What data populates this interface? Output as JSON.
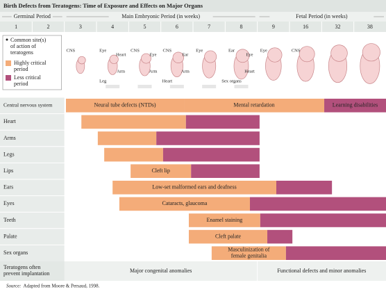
{
  "header": {
    "title": "Birth Defects from Teratogens: Time of Exposure and Effects on Major Organs"
  },
  "periods": [
    {
      "label": "Germinal Period",
      "span": 2
    },
    {
      "label": "Main Embryonic Period (in weeks)",
      "span": 6
    },
    {
      "label": "Fetal Period (in weeks)",
      "span": 4
    }
  ],
  "weeks": [
    1,
    2,
    3,
    4,
    5,
    6,
    7,
    8,
    9,
    16,
    32,
    38
  ],
  "legend": {
    "site_note": [
      "Common site(s)",
      "of action of",
      "teratogens"
    ],
    "highly": [
      "Highly critical",
      "period"
    ],
    "less": [
      "Less critical",
      "period"
    ],
    "highly_color": "#f4ac79",
    "less_color": "#b2507c"
  },
  "embryo_labels": [
    [],
    [],
    [
      "CNS"
    ],
    [
      "Eye",
      "Heart",
      "Arm",
      "Leg"
    ],
    [
      "CNS",
      "Eye",
      "Arm"
    ],
    [
      "CNS",
      "Ear",
      "Arm",
      "Heart"
    ],
    [
      "Eye"
    ],
    [
      "Ear",
      "Eye",
      "Heart",
      "Sex organs"
    ],
    [
      "Eye"
    ],
    [
      "CNS"
    ],
    [],
    []
  ],
  "rows": [
    {
      "label": "Central nervous system",
      "segments": [
        {
          "kind": "highly",
          "start": 2.05,
          "end": 5.72,
          "label": [
            "Neural tube defects (NTDs)"
          ]
        },
        {
          "kind": "highly",
          "start": 5.72,
          "end": 10.08,
          "label": [
            "Mental retardation"
          ]
        },
        {
          "kind": "less",
          "start": 10.08,
          "end": 12,
          "label": [
            "Learning disabilities"
          ]
        }
      ]
    },
    {
      "label": "Heart",
      "segments": [
        {
          "kind": "highly",
          "start": 2.53,
          "end": 5.78
        },
        {
          "kind": "less",
          "start": 5.78,
          "end": 8.07
        }
      ]
    },
    {
      "label": "Arms",
      "segments": [
        {
          "kind": "highly",
          "start": 3.04,
          "end": 4.86
        },
        {
          "kind": "less",
          "start": 4.86,
          "end": 8.07
        }
      ]
    },
    {
      "label": "Legs",
      "segments": [
        {
          "kind": "highly",
          "start": 3.24,
          "end": 5.07
        },
        {
          "kind": "less",
          "start": 5.07,
          "end": 8.07
        }
      ]
    },
    {
      "label": "Lips",
      "segments": [
        {
          "kind": "highly",
          "start": 4.06,
          "end": 5.94,
          "label": [
            "Cleft lip"
          ]
        },
        {
          "kind": "less",
          "start": 5.94,
          "end": 8.07
        }
      ]
    },
    {
      "label": "Ears",
      "segments": [
        {
          "kind": "highly",
          "start": 3.5,
          "end": 8.59,
          "label": [
            "Low-set malformed ears and deafness"
          ]
        },
        {
          "kind": "less",
          "start": 8.59,
          "end": 10.32
        }
      ]
    },
    {
      "label": "Eyes",
      "segments": [
        {
          "kind": "highly",
          "start": 3.71,
          "end": 7.77,
          "label": [
            "Cataracts, glaucoma"
          ]
        },
        {
          "kind": "less",
          "start": 7.77,
          "end": 12
        }
      ]
    },
    {
      "label": "Teeth",
      "segments": [
        {
          "kind": "highly",
          "start": 5.87,
          "end": 8.09,
          "label": [
            "Enamel staining"
          ]
        },
        {
          "kind": "less",
          "start": 8.09,
          "end": 12
        }
      ]
    },
    {
      "label": "Palate",
      "segments": [
        {
          "kind": "highly",
          "start": 5.87,
          "end": 8.31,
          "label": [
            "Cleft palate"
          ]
        },
        {
          "kind": "less",
          "start": 8.31,
          "end": 9.09
        }
      ]
    },
    {
      "label": "Sex organs",
      "segments": [
        {
          "kind": "highly",
          "start": 6.58,
          "end": 8.89,
          "label": [
            "Masculinization of",
            "female genitalia"
          ]
        },
        {
          "kind": "less",
          "start": 8.89,
          "end": 12
        }
      ]
    }
  ],
  "footer": {
    "implantation": [
      "Teratogens often",
      "prevent implantation"
    ],
    "major": "Major congenital anomalies",
    "functional": "Functional defects and minor anomalies"
  },
  "source": {
    "prefix": "Source:",
    "text": "Adapted from Moore & Persaud, 1998."
  }
}
